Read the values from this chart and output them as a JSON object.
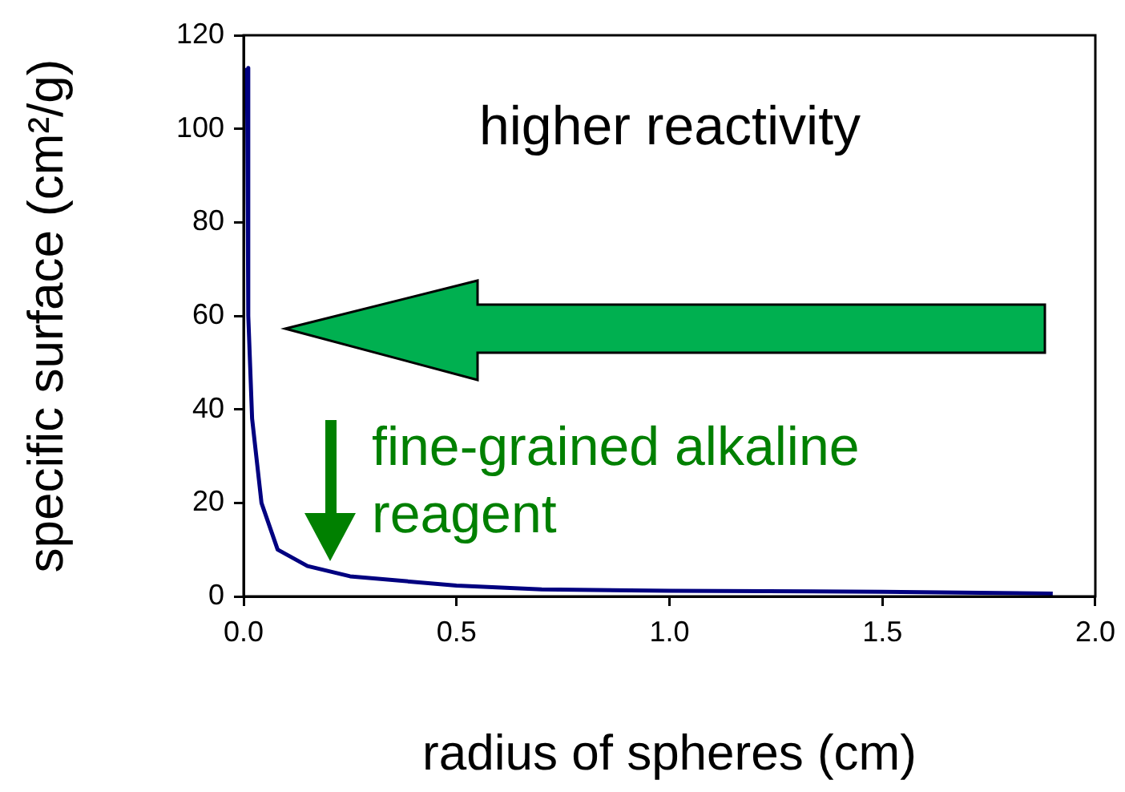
{
  "chart_data": {
    "type": "line",
    "xlabel": "radius of spheres (cm)",
    "ylabel": "specific surface (cm²/g)",
    "series": [
      {
        "color": "#000080",
        "x": [
          0.008,
          0.011,
          0.02,
          0.042,
          0.08,
          0.15,
          0.25,
          0.5,
          0.7,
          1.0,
          1.5,
          1.9
        ],
        "values": [
          113,
          60,
          38,
          20,
          10,
          6.5,
          4.3,
          2.3,
          1.5,
          1.2,
          1,
          0.6
        ]
      }
    ],
    "xlim": [
      0,
      2
    ],
    "xticks": [
      {
        "value": 0,
        "label": "0.0"
      },
      {
        "value": 0.5,
        "label": "0.5"
      },
      {
        "value": 1,
        "label": "1.0"
      },
      {
        "value": 1.5,
        "label": "1.5"
      },
      {
        "value": 2,
        "label": "2.0"
      }
    ],
    "ylim": [
      0,
      120
    ],
    "yticks": [
      0,
      20,
      40,
      60,
      80,
      100,
      120
    ],
    "grid": false,
    "legend": false,
    "marker": "none",
    "line_style": "solid",
    "annotations": [
      "higher reactivity",
      "fine-grained alkaline reagent"
    ]
  }
}
